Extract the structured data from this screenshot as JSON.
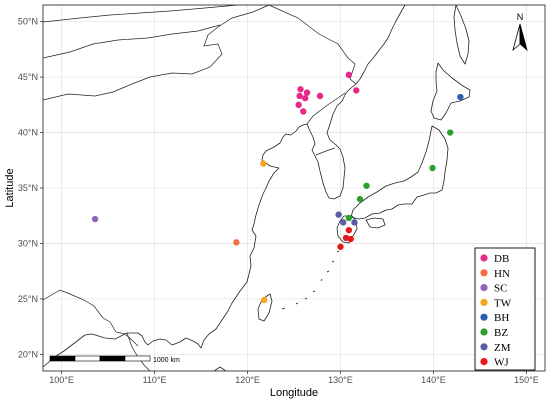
{
  "axes": {
    "xlabel": "Longitude",
    "ylabel": "Latitude",
    "xlim": [
      98,
      152
    ],
    "ylim": [
      18.5,
      51.5
    ],
    "x_ticks": [
      {
        "value": 100,
        "label": "100°E"
      },
      {
        "value": 110,
        "label": "110°E"
      },
      {
        "value": 120,
        "label": "120°E"
      },
      {
        "value": 130,
        "label": "130°E"
      },
      {
        "value": 140,
        "label": "140°E"
      },
      {
        "value": 150,
        "label": "150°E"
      }
    ],
    "y_ticks": [
      {
        "value": 20,
        "label": "20°N"
      },
      {
        "value": 25,
        "label": "25°N"
      },
      {
        "value": 30,
        "label": "30°N"
      },
      {
        "value": 35,
        "label": "35°N"
      },
      {
        "value": 40,
        "label": "40°N"
      },
      {
        "value": 45,
        "label": "45°N"
      },
      {
        "value": 50,
        "label": "50°N"
      }
    ],
    "grid": true
  },
  "north_arrow": {
    "label": "N"
  },
  "scale_bar": {
    "label": "1000 km"
  },
  "legend": {
    "position": "bottom-right"
  },
  "chart_data": {
    "type": "scatter",
    "series": [
      {
        "name": "DB",
        "color": "#e7298a",
        "points": [
          [
            125.7,
            43.9
          ],
          [
            126.4,
            43.6
          ],
          [
            125.6,
            43.3
          ],
          [
            126.2,
            43.1
          ],
          [
            127.8,
            43.3
          ],
          [
            125.5,
            42.5
          ],
          [
            126.0,
            41.9
          ],
          [
            130.9,
            45.2
          ],
          [
            131.7,
            43.8
          ]
        ]
      },
      {
        "name": "HN",
        "color": "#f46d43",
        "points": [
          [
            118.8,
            30.1
          ]
        ]
      },
      {
        "name": "SC",
        "color": "#8e63b8",
        "points": [
          [
            103.6,
            32.2
          ]
        ]
      },
      {
        "name": "TW",
        "color": "#f5a623",
        "points": [
          [
            121.7,
            37.2
          ],
          [
            121.8,
            24.9
          ]
        ]
      },
      {
        "name": "BH",
        "color": "#2c5fb3",
        "points": [
          [
            142.9,
            43.2
          ]
        ]
      },
      {
        "name": "BZ",
        "color": "#2ca02c",
        "points": [
          [
            141.8,
            40.0
          ],
          [
            139.9,
            36.8
          ],
          [
            132.8,
            35.2
          ],
          [
            132.1,
            34.0
          ],
          [
            130.9,
            32.3
          ]
        ]
      },
      {
        "name": "ZM",
        "color": "#5b5ea6",
        "points": [
          [
            129.8,
            32.6
          ],
          [
            130.3,
            31.9
          ],
          [
            131.5,
            31.9
          ]
        ]
      },
      {
        "name": "WJ",
        "color": "#e31a1c",
        "points": [
          [
            130.9,
            31.2
          ],
          [
            130.6,
            30.5
          ],
          [
            131.1,
            30.4
          ],
          [
            130.0,
            29.7
          ]
        ]
      }
    ]
  }
}
